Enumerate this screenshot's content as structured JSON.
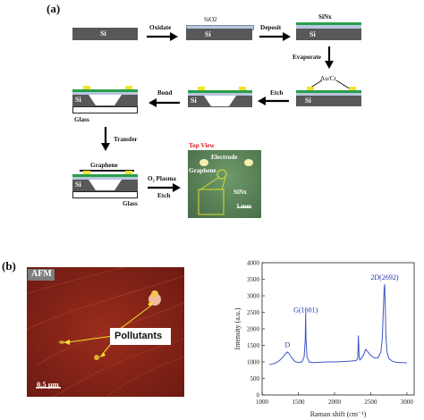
{
  "panel_a": {
    "label": "(a)",
    "steps": {
      "oxidate": "Oxidate",
      "deposit": "Deposit",
      "evaporate": "Evaporate",
      "etch": "Etch",
      "bond": "Bond",
      "transfer": "Transfer",
      "o2_plasma_line1": "O₂ Plasma",
      "o2_plasma_line2": "Etch"
    },
    "materials": {
      "si": "Si",
      "sio2": "SiO2",
      "sinx": "SiNx",
      "aucr": "Au/Cr",
      "glass": "Glass",
      "graphene": "Graphene"
    },
    "top_view": {
      "title": "Top View",
      "electrode": "Electrode",
      "graphene": "Graphene",
      "sinx": "SiNx",
      "scale": "1 mm"
    }
  },
  "panel_b": {
    "label": "(b)",
    "afm": {
      "label": "AFM",
      "pollutants": "Pollutants",
      "scale": "0.5 μm"
    },
    "chart_data": {
      "type": "line",
      "xlabel": "Raman shift (cm⁻¹)",
      "ylabel": "Intensity (a.u.)",
      "xlim": [
        1000,
        3100
      ],
      "ylim": [
        0,
        4000
      ],
      "x_ticks": [
        "1000",
        "1500",
        "2000",
        "2500",
        "3000"
      ],
      "y_ticks": [
        "0",
        "500",
        "1000",
        "1500",
        "2000",
        "2500",
        "3000",
        "3500",
        "4000"
      ],
      "annotations": [
        {
          "text": "D",
          "x": 1350,
          "y": 1450
        },
        {
          "text": "G(1601)",
          "x": 1601,
          "y": 2500
        },
        {
          "text": "2D(2692)",
          "x": 2692,
          "y": 3480
        }
      ],
      "series": [
        {
          "x": [
            1100,
            1150,
            1200,
            1250,
            1300,
            1330,
            1350,
            1370,
            1400,
            1450,
            1500,
            1550,
            1580,
            1595,
            1601,
            1607,
            1620,
            1650,
            1700,
            1800,
            1900,
            2000,
            2100,
            2200,
            2300,
            2320,
            2330,
            2340,
            2350,
            2400,
            2430,
            2450,
            2500,
            2550,
            2600,
            2640,
            2660,
            2675,
            2685,
            2692,
            2700,
            2710,
            2725,
            2750,
            2800,
            2850,
            2900,
            2950,
            3000
          ],
          "y": [
            920,
            940,
            980,
            1060,
            1180,
            1260,
            1300,
            1260,
            1150,
            1020,
            980,
            1000,
            1150,
            1650,
            2500,
            1700,
            1150,
            1000,
            980,
            990,
            1000,
            1000,
            1010,
            1020,
            1040,
            1100,
            1800,
            1150,
            1060,
            1200,
            1380,
            1330,
            1200,
            1120,
            1120,
            1300,
            1700,
            2600,
            3200,
            3350,
            2800,
            1800,
            1300,
            1100,
            1020,
            990,
            980,
            980,
            970
          ]
        }
      ]
    }
  }
}
